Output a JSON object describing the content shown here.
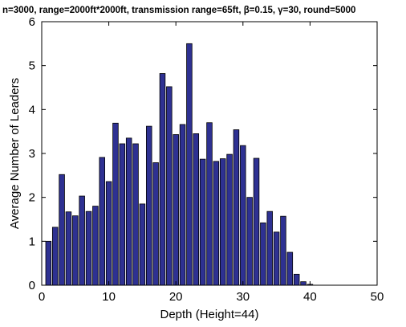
{
  "chart_data": {
    "type": "bar",
    "title": "n=3000, range=2000ft*2000ft, transmission range=65ft, β=0.15, γ=30, round=5000",
    "xlabel": "Depth (Height=44)",
    "ylabel": "Average Number of Leaders",
    "xlim": [
      0,
      50
    ],
    "ylim": [
      0,
      6
    ],
    "xticks": [
      "0",
      "10",
      "20",
      "30",
      "40",
      "50"
    ],
    "yticks": [
      "0",
      "1",
      "2",
      "3",
      "4",
      "5",
      "6"
    ],
    "grid": false,
    "colors": {
      "bar_fill": "#2e3192",
      "bar_edge": "#000000"
    },
    "x": [
      1,
      2,
      3,
      4,
      5,
      6,
      7,
      8,
      9,
      10,
      11,
      12,
      13,
      14,
      15,
      16,
      17,
      18,
      19,
      20,
      21,
      22,
      23,
      24,
      25,
      26,
      27,
      28,
      29,
      30,
      31,
      32,
      33,
      34,
      35,
      36,
      37,
      38,
      39,
      40,
      41,
      42,
      43,
      44
    ],
    "values": [
      1.0,
      1.32,
      2.52,
      1.67,
      1.58,
      2.03,
      1.68,
      1.8,
      2.91,
      2.36,
      3.69,
      3.22,
      3.35,
      3.22,
      1.85,
      3.62,
      2.79,
      4.82,
      4.52,
      3.43,
      3.66,
      5.5,
      3.45,
      2.87,
      3.7,
      2.82,
      2.88,
      2.98,
      3.54,
      3.18,
      2.0,
      2.89,
      1.42,
      1.68,
      1.21,
      1.57,
      0.75,
      0.25,
      0.08,
      0.02,
      0.0,
      0.0,
      0.0,
      0.0
    ]
  }
}
